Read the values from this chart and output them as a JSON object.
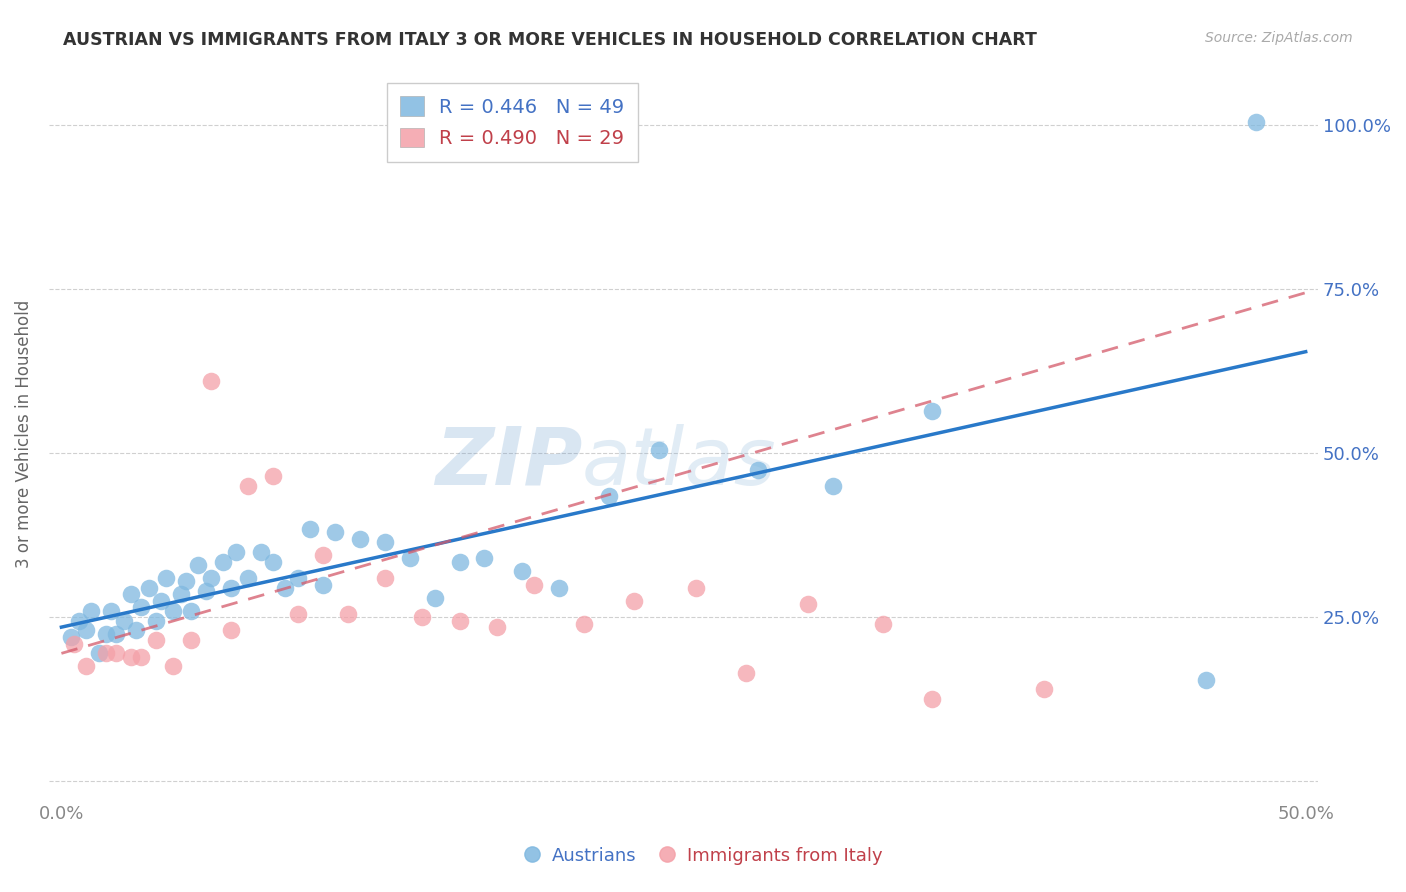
{
  "title": "AUSTRIAN VS IMMIGRANTS FROM ITALY 3 OR MORE VEHICLES IN HOUSEHOLD CORRELATION CHART",
  "source": "Source: ZipAtlas.com",
  "ylabel": "3 or more Vehicles in Household",
  "x_min": 0.0,
  "x_max": 0.5,
  "y_min": -0.02,
  "y_max": 1.08,
  "x_tick_positions": [
    0.0,
    0.1,
    0.2,
    0.3,
    0.4,
    0.5
  ],
  "x_tick_labels": [
    "0.0%",
    "",
    "",
    "",
    "",
    "50.0%"
  ],
  "y_tick_positions": [
    0.0,
    0.25,
    0.5,
    0.75,
    1.0
  ],
  "y_tick_labels_right": [
    "",
    "25.0%",
    "50.0%",
    "75.0%",
    "100.0%"
  ],
  "austrians_R": 0.446,
  "austrians_N": 49,
  "italy_R": 0.49,
  "italy_N": 29,
  "legend_label_blue": "Austrians",
  "legend_label_pink": "Immigrants from Italy",
  "blue_scatter_color": "#7fb8e0",
  "pink_scatter_color": "#f4a0a8",
  "blue_line_color": "#2979c9",
  "pink_line_color": "#d45a6a",
  "watermark_color": "#c8d8ed",
  "austrians_x": [
    0.004,
    0.007,
    0.01,
    0.012,
    0.015,
    0.018,
    0.02,
    0.022,
    0.025,
    0.028,
    0.03,
    0.032,
    0.035,
    0.038,
    0.04,
    0.042,
    0.045,
    0.048,
    0.05,
    0.052,
    0.055,
    0.058,
    0.06,
    0.065,
    0.068,
    0.07,
    0.075,
    0.08,
    0.085,
    0.09,
    0.095,
    0.1,
    0.105,
    0.11,
    0.12,
    0.13,
    0.14,
    0.15,
    0.16,
    0.17,
    0.185,
    0.2,
    0.22,
    0.24,
    0.28,
    0.31,
    0.35,
    0.46,
    0.48
  ],
  "austrians_y": [
    0.22,
    0.245,
    0.23,
    0.26,
    0.195,
    0.225,
    0.26,
    0.225,
    0.245,
    0.285,
    0.23,
    0.265,
    0.295,
    0.245,
    0.275,
    0.31,
    0.26,
    0.285,
    0.305,
    0.26,
    0.33,
    0.29,
    0.31,
    0.335,
    0.295,
    0.35,
    0.31,
    0.35,
    0.335,
    0.295,
    0.31,
    0.385,
    0.3,
    0.38,
    0.37,
    0.365,
    0.34,
    0.28,
    0.335,
    0.34,
    0.32,
    0.295,
    0.435,
    0.505,
    0.475,
    0.45,
    0.565,
    0.155,
    1.005
  ],
  "italy_x": [
    0.005,
    0.01,
    0.018,
    0.022,
    0.028,
    0.032,
    0.038,
    0.045,
    0.052,
    0.06,
    0.068,
    0.075,
    0.085,
    0.095,
    0.105,
    0.115,
    0.13,
    0.145,
    0.16,
    0.175,
    0.19,
    0.21,
    0.23,
    0.255,
    0.275,
    0.3,
    0.33,
    0.35,
    0.395
  ],
  "italy_y": [
    0.21,
    0.175,
    0.195,
    0.195,
    0.19,
    0.19,
    0.215,
    0.175,
    0.215,
    0.61,
    0.23,
    0.45,
    0.465,
    0.255,
    0.345,
    0.255,
    0.31,
    0.25,
    0.245,
    0.235,
    0.3,
    0.24,
    0.275,
    0.295,
    0.165,
    0.27,
    0.24,
    0.125,
    0.14
  ],
  "blue_line_x0": 0.0,
  "blue_line_y0": 0.235,
  "blue_line_x1": 0.5,
  "blue_line_y1": 0.655,
  "pink_line_x0": 0.0,
  "pink_line_y0": 0.195,
  "pink_line_x1": 0.5,
  "pink_line_y1": 0.745
}
